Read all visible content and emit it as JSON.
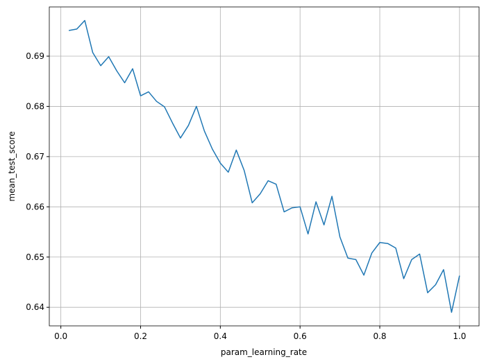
{
  "chart_data": {
    "type": "line",
    "x_label": "param_learning_rate",
    "y_label": "mean_test_score",
    "x": [
      0.02,
      0.04,
      0.06,
      0.08,
      0.1,
      0.12,
      0.14,
      0.16,
      0.18,
      0.2,
      0.22,
      0.24,
      0.26,
      0.28,
      0.3,
      0.32,
      0.34,
      0.36,
      0.38,
      0.4,
      0.42,
      0.44,
      0.46,
      0.48,
      0.5,
      0.52,
      0.54,
      0.56,
      0.58,
      0.6,
      0.62,
      0.64,
      0.66,
      0.68,
      0.7,
      0.72,
      0.74,
      0.76,
      0.78,
      0.8,
      0.82,
      0.84,
      0.86,
      0.88,
      0.9,
      0.92,
      0.94,
      0.96,
      0.98,
      1.0
    ],
    "series": [
      {
        "color": "#1f77b4",
        "values": [
          0.6951,
          0.6954,
          0.6971,
          0.6907,
          0.6881,
          0.6899,
          0.6871,
          0.6847,
          0.6875,
          0.6821,
          0.6829,
          0.681,
          0.6799,
          0.6767,
          0.6737,
          0.6762,
          0.68,
          0.6751,
          0.6715,
          0.6687,
          0.6669,
          0.6713,
          0.6672,
          0.6608,
          0.6626,
          0.6652,
          0.6645,
          0.659,
          0.6598,
          0.66,
          0.6546,
          0.661,
          0.6564,
          0.6621,
          0.654,
          0.6498,
          0.6495,
          0.6464,
          0.6508,
          0.6529,
          0.6527,
          0.6518,
          0.6457,
          0.6495,
          0.6506,
          0.6429,
          0.6445,
          0.6475,
          0.639,
          0.6463
        ]
      }
    ],
    "xlim": [
      -0.029,
      1.049
    ],
    "ylim": [
      0.6363,
      0.6998
    ],
    "xticks": [
      {
        "value": 0,
        "label": "0.0"
      },
      0.2,
      0.4,
      0.6,
      0.8,
      {
        "value": 1,
        "label": "1.0"
      }
    ],
    "yticks": [
      0.64,
      0.65,
      0.66,
      0.67,
      0.68,
      0.69
    ],
    "grid": true
  }
}
